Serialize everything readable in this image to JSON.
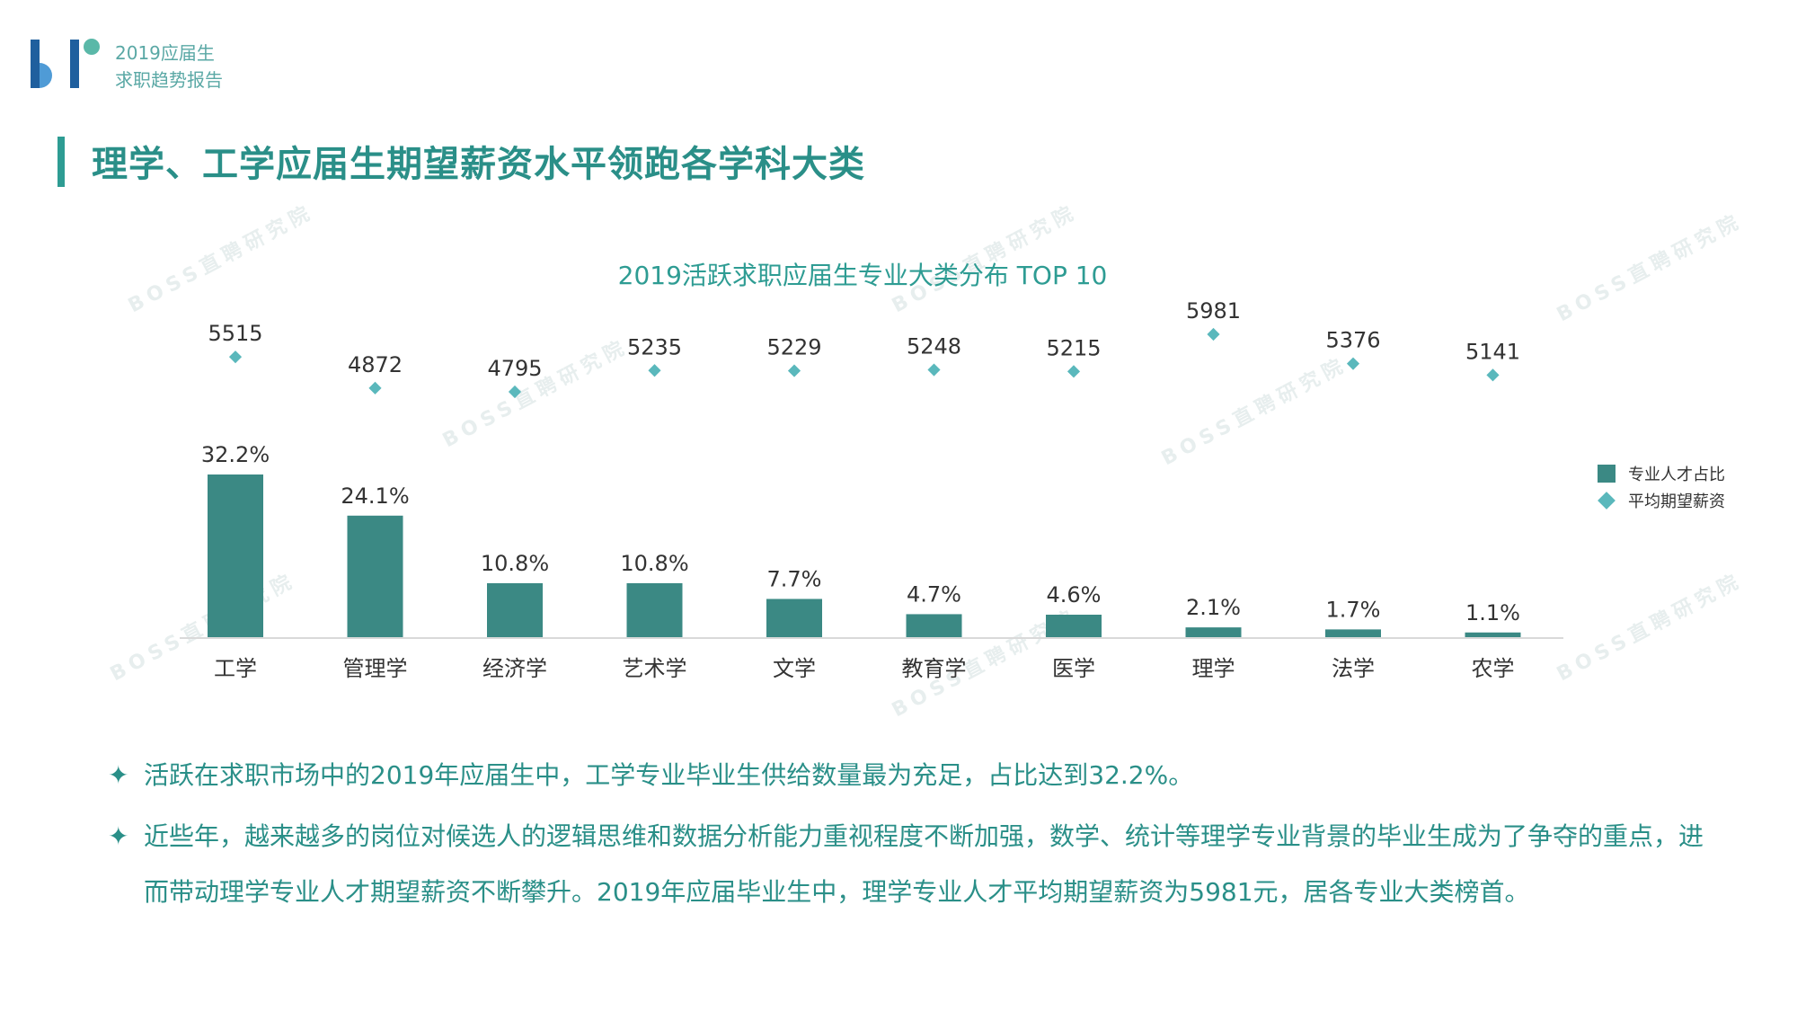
{
  "brand": {
    "line1": "2019应届生",
    "line2": "求职趋势报告"
  },
  "page_title": "理学、工学应届生期望薪资水平领跑各学科大类",
  "watermark": "BOSS直聘研究院",
  "chart_data": {
    "type": "bar",
    "title": "2019活跃求职应届生专业大类分布 TOP 10",
    "categories": [
      "工学",
      "管理学",
      "经济学",
      "艺术学",
      "文学",
      "教育学",
      "医学",
      "理学",
      "法学",
      "农学"
    ],
    "series": [
      {
        "name": "专业人才占比",
        "type": "bar",
        "values": [
          32.2,
          24.1,
          10.8,
          10.8,
          7.7,
          4.7,
          4.6,
          2.1,
          1.7,
          1.1
        ],
        "labels": [
          "32.2%",
          "24.1%",
          "10.8%",
          "10.8%",
          "7.7%",
          "4.7%",
          "4.6%",
          "2.1%",
          "1.7%",
          "1.1%"
        ],
        "color": "#3b8984"
      },
      {
        "name": "平均期望薪资",
        "type": "scatter",
        "values": [
          5515,
          4872,
          4795,
          5235,
          5229,
          5248,
          5215,
          5981,
          5376,
          5141
        ],
        "color": "#5ab8bc"
      }
    ],
    "legend_position": "right",
    "grid": false
  },
  "bullets": [
    "活跃在求职市场中的2019年应届生中，工学专业毕业生供给数量最为充足，占比达到32.2%。",
    "近些年，越来越多的岗位对候选人的逻辑思维和数据分析能力重视程度不断加强，数学、统计等理学专业背景的毕业生成为了争夺的重点，进而带动理学专业人才期望薪资不断攀升。2019年应届毕业生中，理学专业人才平均期望薪资为5981元，居各专业大类榜首。"
  ],
  "bullet_icon": "four-point-star-icon"
}
